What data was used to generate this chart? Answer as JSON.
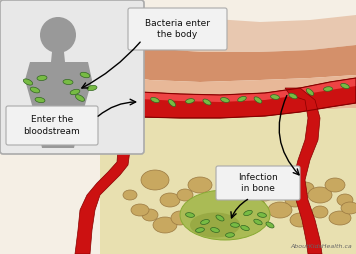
{
  "bg_color": "#f5efe5",
  "skin_top_color": "#e8c8b0",
  "skin_mid_color": "#d4906a",
  "skin_inner_color": "#e8b898",
  "bone_color": "#ede8c8",
  "bone_dark": "#c8b878",
  "vessel_red": "#cc1111",
  "vessel_dark": "#991111",
  "vessel_light": "#ee4444",
  "bacteria_color": "#77bb44",
  "bacteria_outline": "#336622",
  "infection_green": "#aabb55",
  "infection_dark": "#88aa33",
  "bone_spot_dark": "#9a7840",
  "bone_spot_mid": "#b89050",
  "inset_bg": "#e8e8e8",
  "inset_border": "#aaaaaa",
  "silhouette_color": "#999999",
  "box_bg": "#f2f2f2",
  "box_border": "#aaaaaa",
  "watermark": "AboutKidsHealth.ca",
  "label1": "Bacteria enter\nthe body",
  "label2": "Enter the\nbloodstream",
  "label3": "Infection\nin bone"
}
